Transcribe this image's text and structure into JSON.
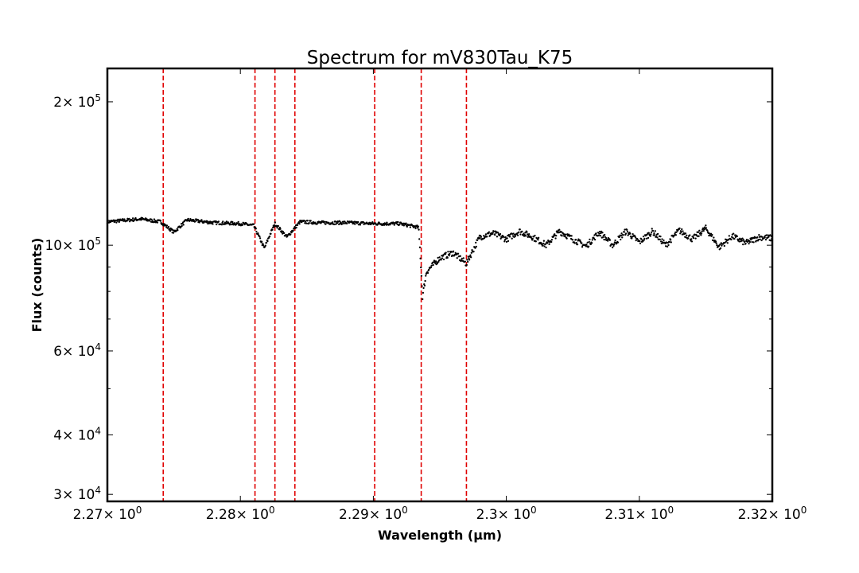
{
  "chart_data": {
    "type": "scatter",
    "title": "Spectrum for mV830Tau_K75",
    "xlabel": "Wavelength (μm)",
    "ylabel": "Flux (counts)",
    "xlim": [
      2.27,
      2.32
    ],
    "ylim": [
      29000,
      235000
    ],
    "yscale": "log",
    "grid": false,
    "marker_color": "#000000",
    "line_color": "#e00000",
    "x_ticks": [
      {
        "value": 2.27,
        "mantissa": "2.27"
      },
      {
        "value": 2.28,
        "mantissa": "2.28"
      },
      {
        "value": 2.29,
        "mantissa": "2.29"
      },
      {
        "value": 2.3,
        "mantissa": "2.3"
      },
      {
        "value": 2.31,
        "mantissa": "2.31"
      },
      {
        "value": 2.32,
        "mantissa": "2.32"
      }
    ],
    "x_tick_multiplier": "× 10",
    "x_tick_exponent": "0",
    "y_ticks": [
      {
        "value": 30000,
        "mantissa": "3",
        "exponent": "4"
      },
      {
        "value": 40000,
        "mantissa": "4",
        "exponent": "4"
      },
      {
        "value": 60000,
        "mantissa": "6",
        "exponent": "4"
      },
      {
        "value": 100000,
        "mantissa": "10",
        "exponent": "5"
      },
      {
        "value": 200000,
        "mantissa": "2",
        "exponent": "5"
      }
    ],
    "y_tick_multiplier": "× 10",
    "y_minor_ticks": [
      50000,
      70000,
      80000,
      90000
    ],
    "vertical_lines": [
      2.2742,
      2.2811,
      2.2826,
      2.2841,
      2.2901,
      2.2936,
      2.297
    ],
    "series": [
      {
        "x": [
          2.27,
          2.2725,
          2.274,
          2.275,
          2.276,
          2.278,
          2.28,
          2.281,
          2.2818,
          2.2826,
          2.2835,
          2.2845,
          2.286,
          2.288,
          2.29,
          2.292,
          2.2934,
          2.2937,
          2.294,
          2.295,
          2.296,
          2.297,
          2.298,
          2.299,
          2.3,
          2.301,
          2.302,
          2.303,
          2.304,
          2.305,
          2.306,
          2.307,
          2.308,
          2.309,
          2.31,
          2.311,
          2.312,
          2.313,
          2.314,
          2.315,
          2.316,
          2.317,
          2.318,
          2.319,
          2.32
        ],
        "y": [
          112000,
          113500,
          112000,
          106500,
          113000,
          111500,
          111000,
          110000,
          98500,
          111000,
          104000,
          112000,
          111500,
          111500,
          111000,
          111000,
          109000,
          78000,
          88000,
          94000,
          96500,
          91500,
          104000,
          106000,
          103000,
          107000,
          104000,
          100000,
          107000,
          103000,
          99500,
          106500,
          100000,
          107000,
          101500,
          107000,
          100000,
          107500,
          103000,
          108500,
          99000,
          104500,
          101000,
          104000,
          103500
        ]
      }
    ]
  }
}
